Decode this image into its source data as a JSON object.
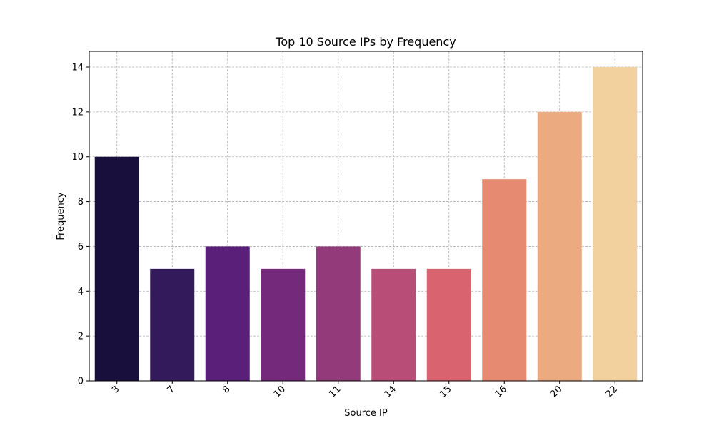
{
  "chart_data": {
    "type": "bar",
    "title": "Top 10 Source IPs by Frequency",
    "xlabel": "Source IP",
    "ylabel": "Frequency",
    "categories": [
      "3",
      "7",
      "8",
      "10",
      "11",
      "14",
      "15",
      "16",
      "20",
      "22"
    ],
    "values": [
      10,
      5,
      6,
      5,
      6,
      5,
      5,
      9,
      12,
      14
    ],
    "colors": [
      "#180f3d",
      "#331a5b",
      "#5a1f79",
      "#75297b",
      "#933b7a",
      "#b84e78",
      "#d9636f",
      "#e68a71",
      "#ecaa80",
      "#f2d19f"
    ],
    "ylim": [
      0,
      14.7
    ],
    "yticks": [
      0,
      2,
      4,
      6,
      8,
      10,
      12,
      14
    ],
    "grid": true,
    "xtick_rotation": 45
  }
}
